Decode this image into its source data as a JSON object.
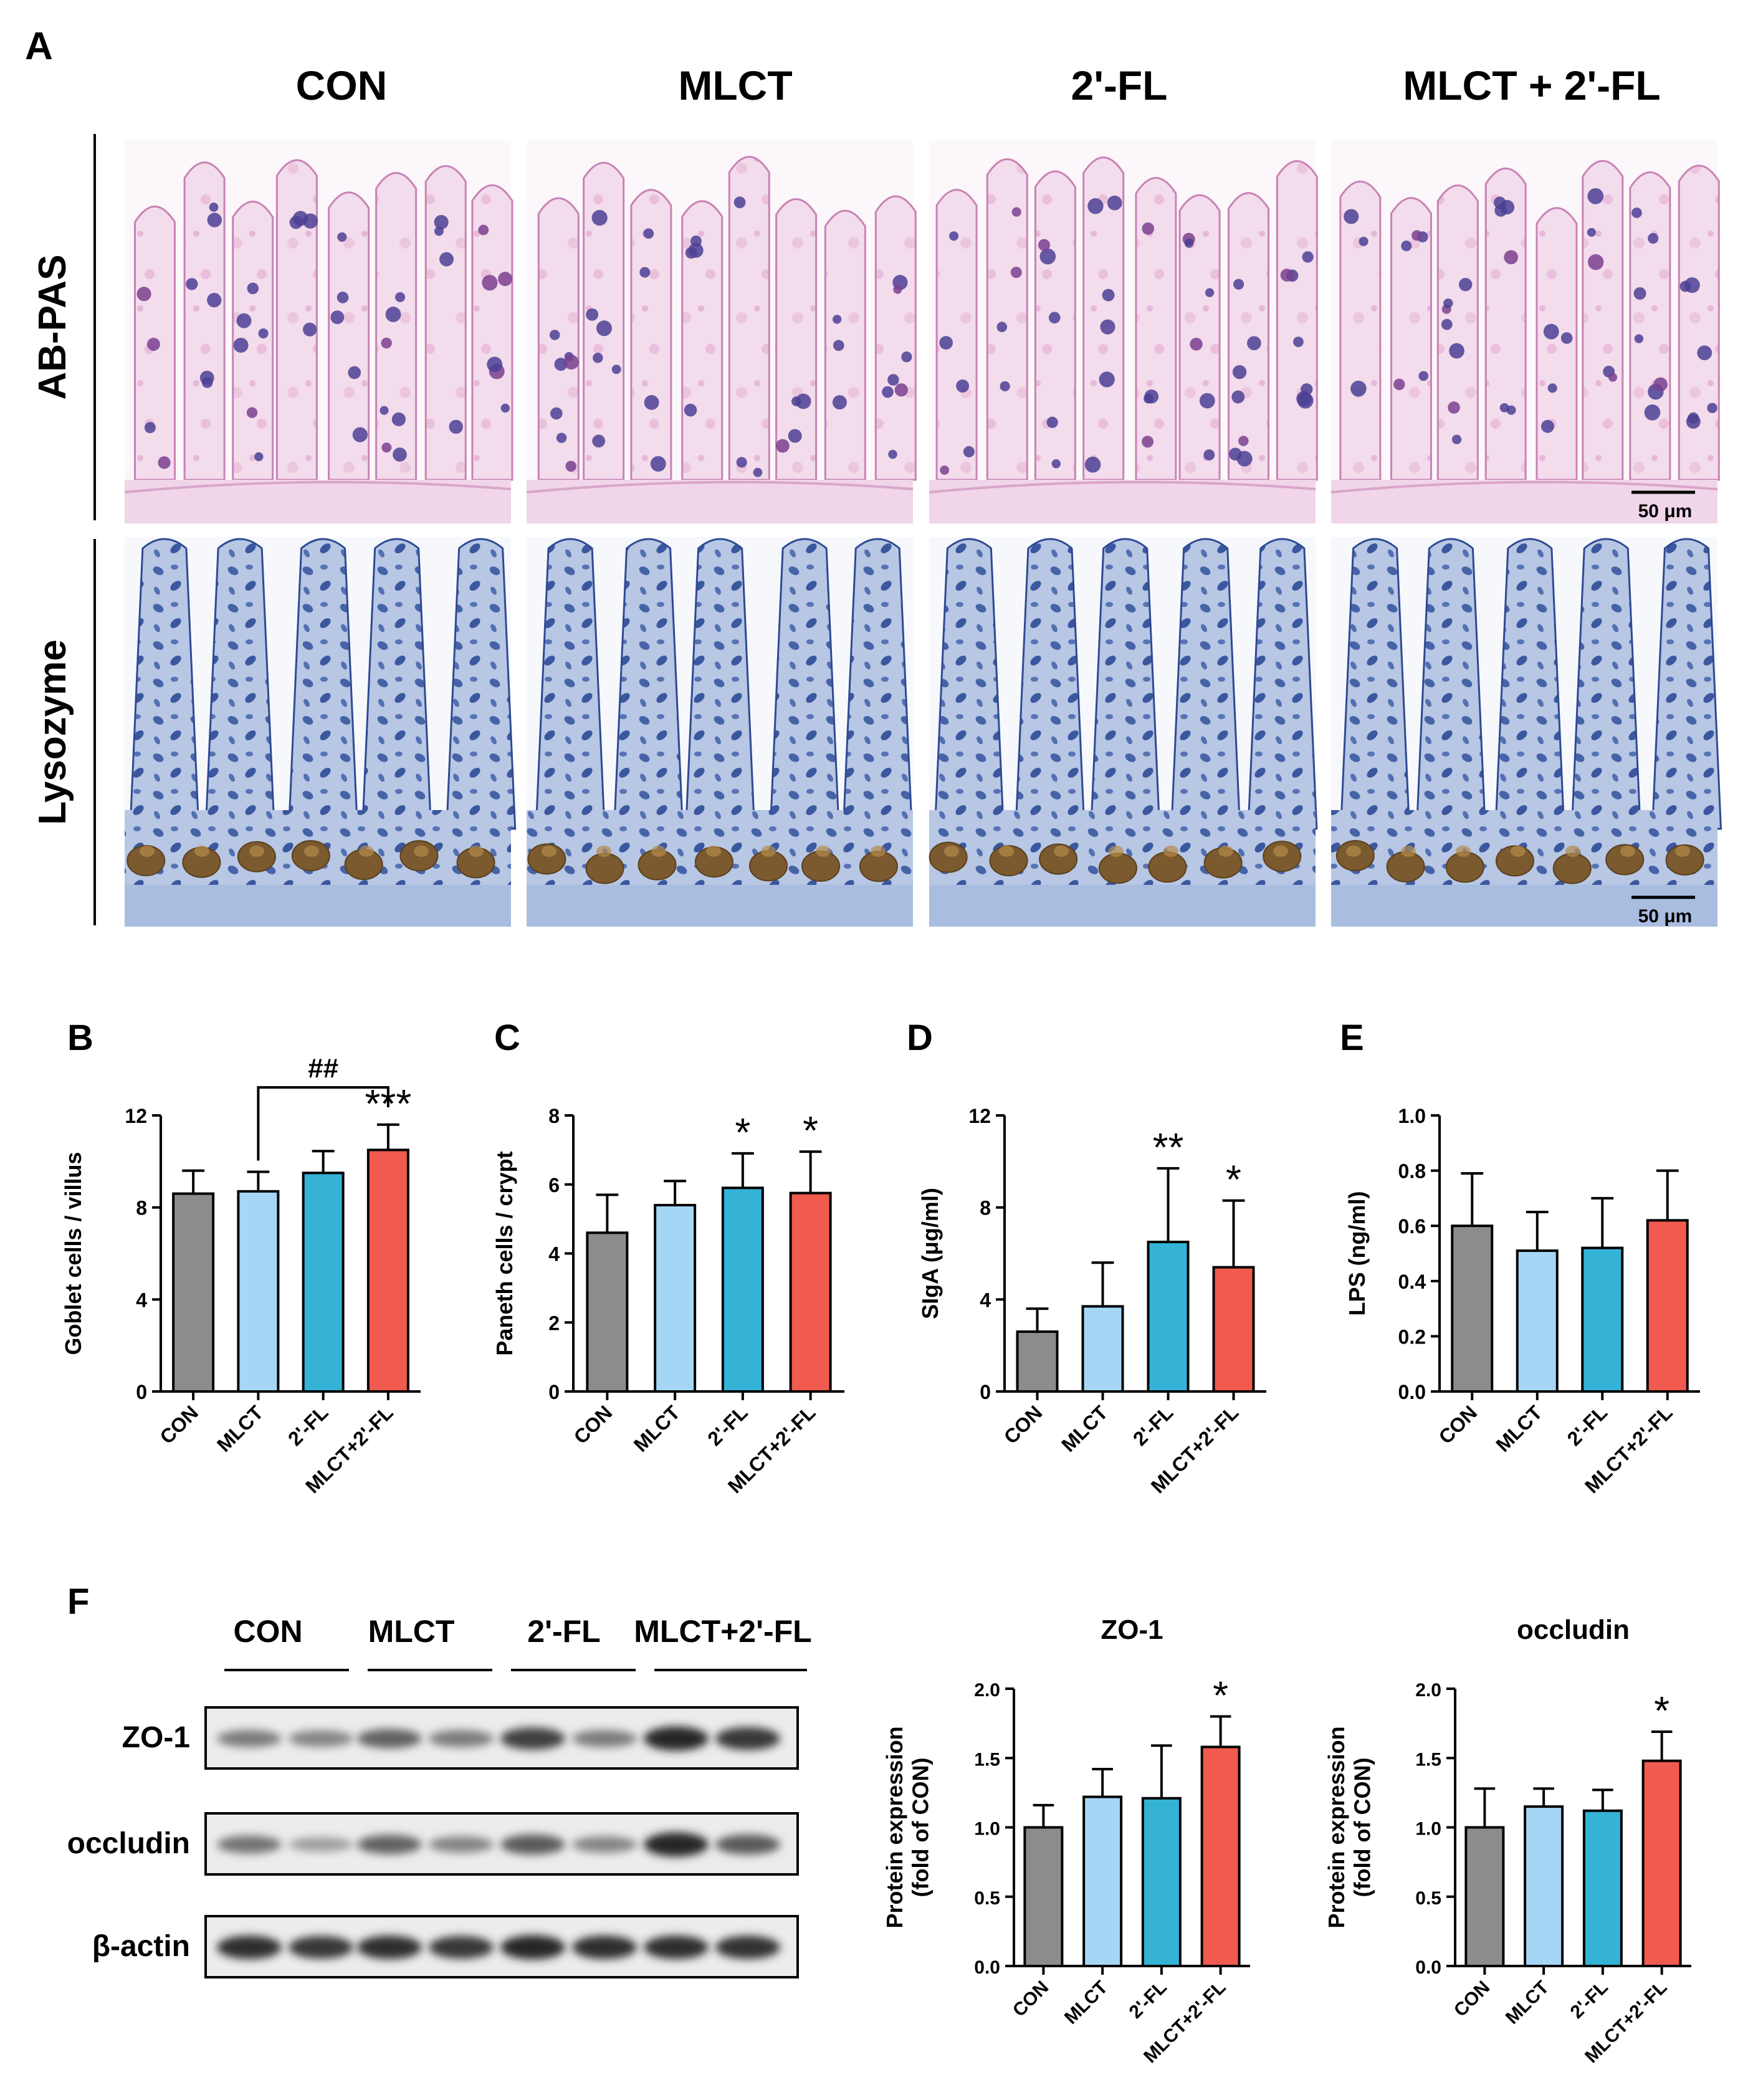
{
  "panel_letters": [
    "A",
    "B",
    "C",
    "D",
    "E",
    "F"
  ],
  "histology": {
    "groups": [
      "CON",
      "MLCT",
      "2'-FL",
      "MLCT + 2'-FL"
    ],
    "rows": [
      "AB-PAS",
      "Lysozyme"
    ],
    "scale_bar": "50 μm"
  },
  "colors": {
    "CON": "#8c8c8c",
    "MLCT": "#a6d6f5",
    "2'-FL": "#34b3d6",
    "MLCT+2'-FL": "#f15a4f",
    "abpas_bg": "#f1d8ea",
    "lysozyme_bg": "#9fb4d9"
  },
  "chart_data": [
    {
      "panel": "B",
      "type": "bar",
      "categories": [
        "CON",
        "MLCT",
        "2'-FL",
        "MLCT+2'-FL"
      ],
      "values": [
        8.6,
        8.7,
        9.5,
        10.5
      ],
      "errors": [
        1.0,
        0.85,
        0.95,
        1.1
      ],
      "ylabel": "Goblet cells / villus",
      "ylim": [
        0,
        12
      ],
      "yticks": [
        "0",
        "4",
        "8",
        "12"
      ],
      "significance": [
        "",
        "",
        "",
        "***"
      ],
      "bracket": {
        "from": 1,
        "to": 3,
        "label": "##"
      }
    },
    {
      "panel": "C",
      "type": "bar",
      "categories": [
        "CON",
        "MLCT",
        "2'-FL",
        "MLCT+2'-FL"
      ],
      "values": [
        4.6,
        5.4,
        5.9,
        5.75
      ],
      "errors": [
        1.1,
        0.7,
        1.0,
        1.2
      ],
      "ylabel": "Paneth cells / crypt",
      "ylim": [
        0,
        8
      ],
      "yticks": [
        "0",
        "2",
        "4",
        "6",
        "8"
      ],
      "significance": [
        "",
        "",
        "*",
        "*"
      ]
    },
    {
      "panel": "D",
      "type": "bar",
      "categories": [
        "CON",
        "MLCT",
        "2'-FL",
        "MLCT+2'-FL"
      ],
      "values": [
        2.6,
        3.7,
        6.5,
        5.4
      ],
      "errors": [
        1.0,
        1.9,
        3.2,
        2.9
      ],
      "ylabel": "SIgA (μg/ml)",
      "ylim": [
        0,
        12
      ],
      "yticks": [
        "0",
        "4",
        "8",
        "12"
      ],
      "significance": [
        "",
        "",
        "**",
        "*"
      ]
    },
    {
      "panel": "E",
      "type": "bar",
      "categories": [
        "CON",
        "MLCT",
        "2'-FL",
        "MLCT+2'-FL"
      ],
      "values": [
        0.6,
        0.51,
        0.52,
        0.62
      ],
      "errors": [
        0.19,
        0.14,
        0.18,
        0.18
      ],
      "ylabel": "LPS (ng/ml)",
      "ylim": [
        0,
        1.0
      ],
      "yticks": [
        "0.0",
        "0.2",
        "0.4",
        "0.6",
        "0.8",
        "1.0"
      ],
      "significance": [
        "",
        "",
        "",
        ""
      ]
    },
    {
      "panel": "F",
      "type": "bar",
      "title": "ZO-1",
      "categories": [
        "CON",
        "MLCT",
        "2'-FL",
        "MLCT+2'-FL"
      ],
      "values": [
        1.0,
        1.22,
        1.21,
        1.58
      ],
      "errors": [
        0.16,
        0.2,
        0.38,
        0.22
      ],
      "ylabel": "Protein expression\n(fold of CON)",
      "ylim": [
        0,
        2.0
      ],
      "yticks": [
        "0.0",
        "0.5",
        "1.0",
        "1.5",
        "2.0"
      ],
      "significance": [
        "",
        "",
        "",
        "*"
      ]
    },
    {
      "panel": "F",
      "type": "bar",
      "title": "occludin",
      "categories": [
        "CON",
        "MLCT",
        "2'-FL",
        "MLCT+2'-FL"
      ],
      "values": [
        1.0,
        1.15,
        1.12,
        1.48
      ],
      "errors": [
        0.28,
        0.13,
        0.15,
        0.21
      ],
      "ylabel": "Protein expression\n(fold of CON)",
      "ylim": [
        0,
        2.0
      ],
      "yticks": [
        "0.0",
        "0.5",
        "1.0",
        "1.5",
        "2.0"
      ],
      "significance": [
        "",
        "",
        "",
        "*"
      ]
    }
  ],
  "western_blot": {
    "groups": [
      "CON",
      "MLCT",
      "2'-FL",
      "MLCT+2'-FL"
    ],
    "bands": [
      {
        "name": "ZO-1",
        "intensity": [
          0.45,
          0.4,
          0.6,
          0.45,
          0.8,
          0.45,
          0.95,
          0.85
        ]
      },
      {
        "name": "occludin",
        "intensity": [
          0.5,
          0.25,
          0.6,
          0.4,
          0.65,
          0.4,
          0.95,
          0.65
        ]
      },
      {
        "name": "β-actin",
        "intensity": [
          0.9,
          0.85,
          0.9,
          0.85,
          0.95,
          0.9,
          0.9,
          0.88
        ]
      }
    ]
  }
}
